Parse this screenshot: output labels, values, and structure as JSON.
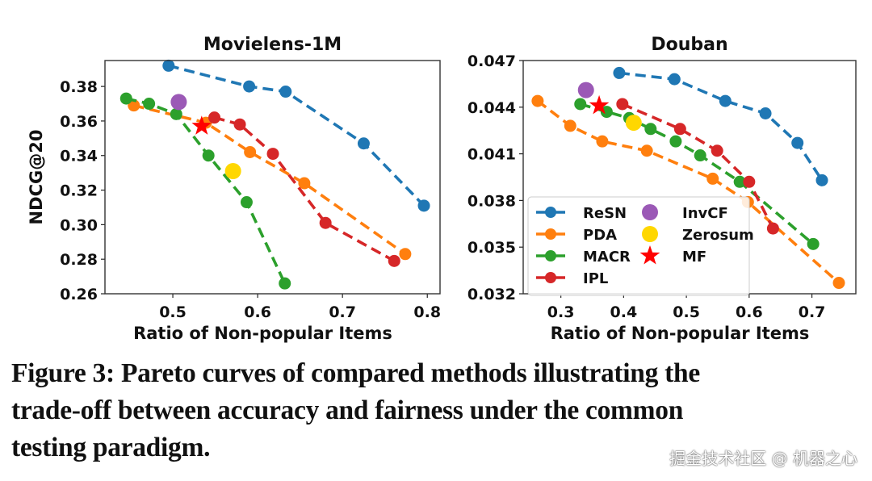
{
  "chart_data": [
    {
      "type": "line",
      "title": "Movielens-1M",
      "xlabel": "Ratio of Non-popular Items",
      "ylabel": "NDCG@20",
      "xlim": [
        0.42,
        0.815
      ],
      "ylim": [
        0.26,
        0.395
      ],
      "xticks": [
        0.5,
        0.6,
        0.7,
        0.8
      ],
      "xtick_labels": [
        "0.5",
        "0.6",
        "0.7",
        "0.8"
      ],
      "yticks": [
        0.26,
        0.28,
        0.3,
        0.32,
        0.34,
        0.36,
        0.38
      ],
      "ytick_labels": [
        "0.26",
        "0.28",
        "0.30",
        "0.32",
        "0.34",
        "0.36",
        "0.38"
      ],
      "series": [
        {
          "name": "ReSN",
          "style": "dashed-line",
          "color": "#1f77b4",
          "x": [
            0.495,
            0.59,
            0.633,
            0.725,
            0.796
          ],
          "y": [
            0.392,
            0.38,
            0.377,
            0.347,
            0.311
          ]
        },
        {
          "name": "PDA",
          "style": "dashed-line",
          "color": "#ff7f0e",
          "x": [
            0.454,
            0.539,
            0.591,
            0.655,
            0.774
          ],
          "y": [
            0.369,
            0.359,
            0.342,
            0.324,
            0.283
          ]
        },
        {
          "name": "MACR",
          "style": "dashed-line",
          "color": "#2ca02c",
          "x": [
            0.445,
            0.472,
            0.504,
            0.542,
            0.587,
            0.632
          ],
          "y": [
            0.373,
            0.37,
            0.364,
            0.34,
            0.313,
            0.266
          ]
        },
        {
          "name": "IPL",
          "style": "dashed-line",
          "color": "#d62728",
          "x": [
            0.549,
            0.579,
            0.618,
            0.68,
            0.761
          ],
          "y": [
            0.362,
            0.358,
            0.341,
            0.301,
            0.279
          ]
        },
        {
          "name": "InvCF",
          "style": "point",
          "color": "#9b59b6",
          "x": [
            0.507
          ],
          "y": [
            0.371
          ]
        },
        {
          "name": "Zerosum",
          "style": "point",
          "color": "#ffd700",
          "x": [
            0.571
          ],
          "y": [
            0.331
          ]
        },
        {
          "name": "MF",
          "style": "star",
          "color": "#ff0000",
          "x": [
            0.534
          ],
          "y": [
            0.357
          ]
        }
      ]
    },
    {
      "type": "line",
      "title": "Douban",
      "xlabel": "Ratio of Non-popular Items",
      "ylabel": "",
      "xlim": [
        0.24,
        0.77
      ],
      "ylim": [
        0.032,
        0.047
      ],
      "xticks": [
        0.3,
        0.4,
        0.5,
        0.6,
        0.7
      ],
      "xtick_labels": [
        "0.3",
        "0.4",
        "0.5",
        "0.6",
        "0.7"
      ],
      "yticks": [
        0.032,
        0.035,
        0.038,
        0.041,
        0.044,
        0.047
      ],
      "ytick_labels": [
        "0.032",
        "0.035",
        "0.038",
        "0.041",
        "0.044",
        "0.047"
      ],
      "legend": "lower-left",
      "series": [
        {
          "name": "ReSN",
          "style": "dashed-line",
          "color": "#1f77b4",
          "x": [
            0.393,
            0.481,
            0.562,
            0.626,
            0.677,
            0.716
          ],
          "y": [
            0.0462,
            0.0458,
            0.0444,
            0.0436,
            0.0417,
            0.0393
          ]
        },
        {
          "name": "PDA",
          "style": "dashed-line",
          "color": "#ff7f0e",
          "x": [
            0.263,
            0.315,
            0.366,
            0.437,
            0.542,
            0.598,
            0.743
          ],
          "y": [
            0.0444,
            0.0428,
            0.0418,
            0.0412,
            0.0394,
            0.0379,
            0.0327
          ]
        },
        {
          "name": "MACR",
          "style": "dashed-line",
          "color": "#2ca02c",
          "x": [
            0.331,
            0.373,
            0.409,
            0.443,
            0.483,
            0.522,
            0.585,
            0.702
          ],
          "y": [
            0.0442,
            0.0437,
            0.0433,
            0.0426,
            0.0418,
            0.0409,
            0.0392,
            0.0352
          ]
        },
        {
          "name": "IPL",
          "style": "dashed-line",
          "color": "#d62728",
          "x": [
            0.398,
            0.49,
            0.549,
            0.6,
            0.638
          ],
          "y": [
            0.0442,
            0.0426,
            0.0412,
            0.0392,
            0.0362
          ]
        },
        {
          "name": "InvCF",
          "style": "point",
          "color": "#9b59b6",
          "x": [
            0.34
          ],
          "y": [
            0.0451
          ]
        },
        {
          "name": "Zerosum",
          "style": "point",
          "color": "#ffd700",
          "x": [
            0.416
          ],
          "y": [
            0.043
          ]
        },
        {
          "name": "MF",
          "style": "star",
          "color": "#ff0000",
          "x": [
            0.361
          ],
          "y": [
            0.0441
          ]
        }
      ]
    }
  ],
  "legend": {
    "entries": [
      {
        "label": "ReSN",
        "color": "#1f77b4",
        "marker": "line-dot"
      },
      {
        "label": "PDA",
        "color": "#ff7f0e",
        "marker": "line-dot"
      },
      {
        "label": "MACR",
        "color": "#2ca02c",
        "marker": "line-dot"
      },
      {
        "label": "IPL",
        "color": "#d62728",
        "marker": "line-dot"
      },
      {
        "label": "InvCF",
        "color": "#9b59b6",
        "marker": "dot"
      },
      {
        "label": "Zerosum",
        "color": "#ffd700",
        "marker": "dot"
      },
      {
        "label": "MF",
        "color": "#ff0000",
        "marker": "star"
      }
    ]
  },
  "caption": {
    "lines": [
      "Figure 3: Pareto curves of compared methods illustrating the",
      "trade-off between accuracy and fairness under the common",
      "testing paradigm."
    ]
  },
  "watermark": "掘金技术社区 @ 机器之心"
}
